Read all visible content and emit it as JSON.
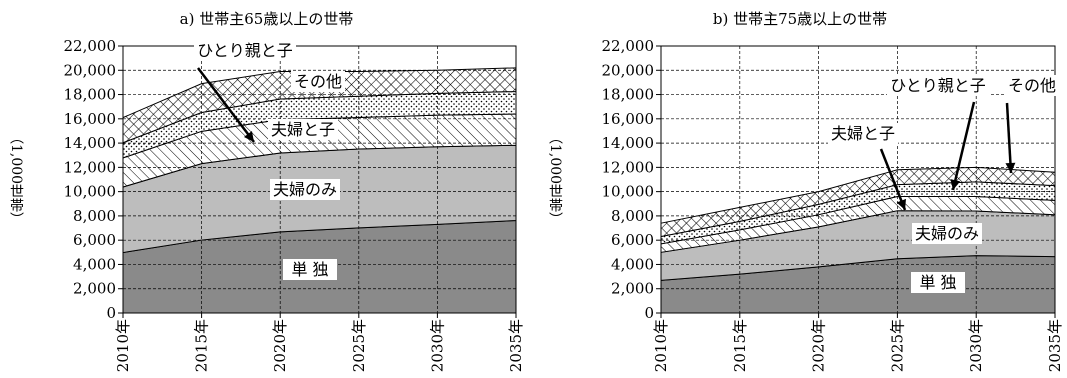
{
  "chart_data": [
    {
      "type": "area",
      "stacked": true,
      "title": "a) 世帯主65歳以上の世帯",
      "ylabel": "（1,000世帯）",
      "ylim": [
        0,
        22000
      ],
      "yticks": [
        "22,000",
        "20,000",
        "18,000",
        "16,000",
        "14,000",
        "12,000",
        "10,000",
        "8,000",
        "6,000",
        "4,000",
        "2,000",
        "0"
      ],
      "categories": [
        "2010年",
        "2015年",
        "2020年",
        "2025年",
        "2030年",
        "2035年"
      ],
      "grid": true,
      "series": [
        {
          "name": "単 独",
          "values": [
            4980,
            6010,
            6680,
            7010,
            7300,
            7620
          ]
        },
        {
          "name": "夫婦のみ",
          "values": [
            5400,
            6300,
            6500,
            6500,
            6400,
            6200
          ]
        },
        {
          "name": "夫婦と子",
          "values": [
            2400,
            2660,
            2750,
            2600,
            2600,
            2580
          ]
        },
        {
          "name": "ひとり親と子",
          "values": [
            1250,
            1550,
            1700,
            1750,
            1800,
            1850
          ]
        },
        {
          "name": "その他",
          "values": [
            2070,
            2380,
            2270,
            2040,
            1900,
            1950
          ]
        }
      ]
    },
    {
      "type": "area",
      "stacked": true,
      "title": "b) 世帯主75歳以上の世帯",
      "ylabel": "（1,000世帯）",
      "ylim": [
        0,
        22000
      ],
      "yticks": [
        "22,000",
        "20,000",
        "18,000",
        "16,000",
        "14,000",
        "12,000",
        "10,000",
        "8,000",
        "6,000",
        "4,000",
        "2,000",
        "0"
      ],
      "categories": [
        "2010年",
        "2015年",
        "2020年",
        "2025年",
        "2030年",
        "2035年"
      ],
      "grid": true,
      "series": [
        {
          "name": "単 独",
          "values": [
            2690,
            3200,
            3800,
            4470,
            4730,
            4650
          ]
        },
        {
          "name": "夫婦のみ",
          "values": [
            2310,
            2800,
            3300,
            3960,
            3670,
            3450
          ]
        },
        {
          "name": "夫婦と子",
          "values": [
            700,
            850,
            1000,
            1170,
            1200,
            1180
          ]
        },
        {
          "name": "ひとり親と子",
          "values": [
            600,
            700,
            850,
            980,
            1200,
            1220
          ]
        },
        {
          "name": "その他",
          "values": [
            1100,
            1150,
            1050,
            1220,
            1200,
            1100
          ]
        }
      ]
    }
  ]
}
